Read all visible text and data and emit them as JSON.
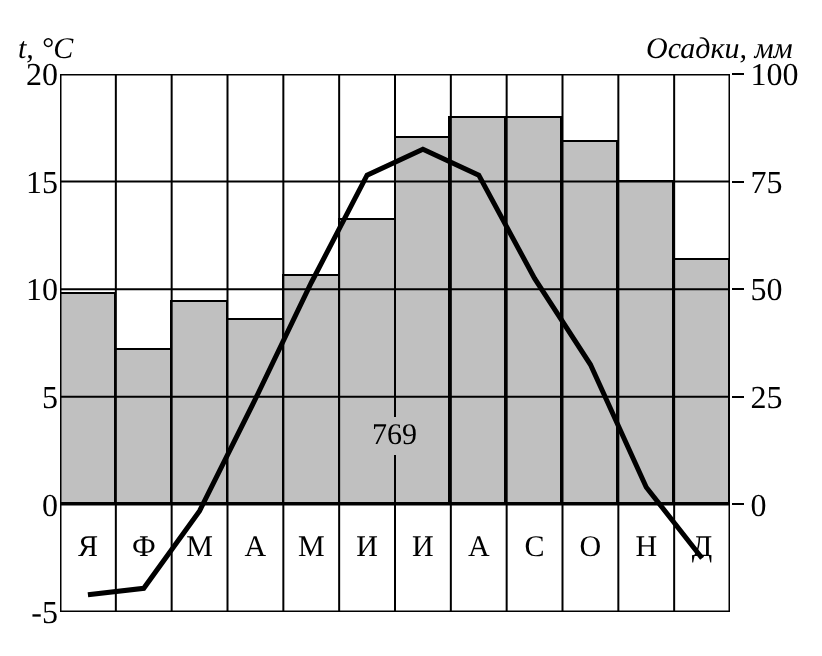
{
  "chart_data": {
    "type": "bar",
    "ylabel": "t, °C",
    "y2label": "Осадки, мм",
    "categories": [
      "Я",
      "Ф",
      "М",
      "А",
      "М",
      "И",
      "И",
      "А",
      "С",
      "О",
      "Н",
      "Д"
    ],
    "series": [
      {
        "axis": "y2",
        "color": "#c0c0c0",
        "values": [
          49,
          36,
          47,
          43,
          53,
          66,
          85,
          90,
          90,
          84,
          75,
          57
        ]
      },
      {
        "type": "line",
        "axis": "y",
        "color": "#000000",
        "values": [
          -4.2,
          -3.9,
          -0.3,
          4.9,
          10.3,
          15.3,
          16.5,
          15.3,
          10.5,
          6.5,
          0.8,
          -2.5
        ]
      }
    ],
    "ylim": [
      -5,
      20
    ],
    "yticks": [
      -5,
      0,
      5,
      10,
      15,
      20
    ],
    "y2lim": [
      -25,
      100
    ],
    "y2ticks": [
      0,
      25,
      50,
      75,
      100
    ],
    "annotations": [
      "769"
    ],
    "grid": true,
    "marker": "none",
    "line_style": "solid"
  }
}
